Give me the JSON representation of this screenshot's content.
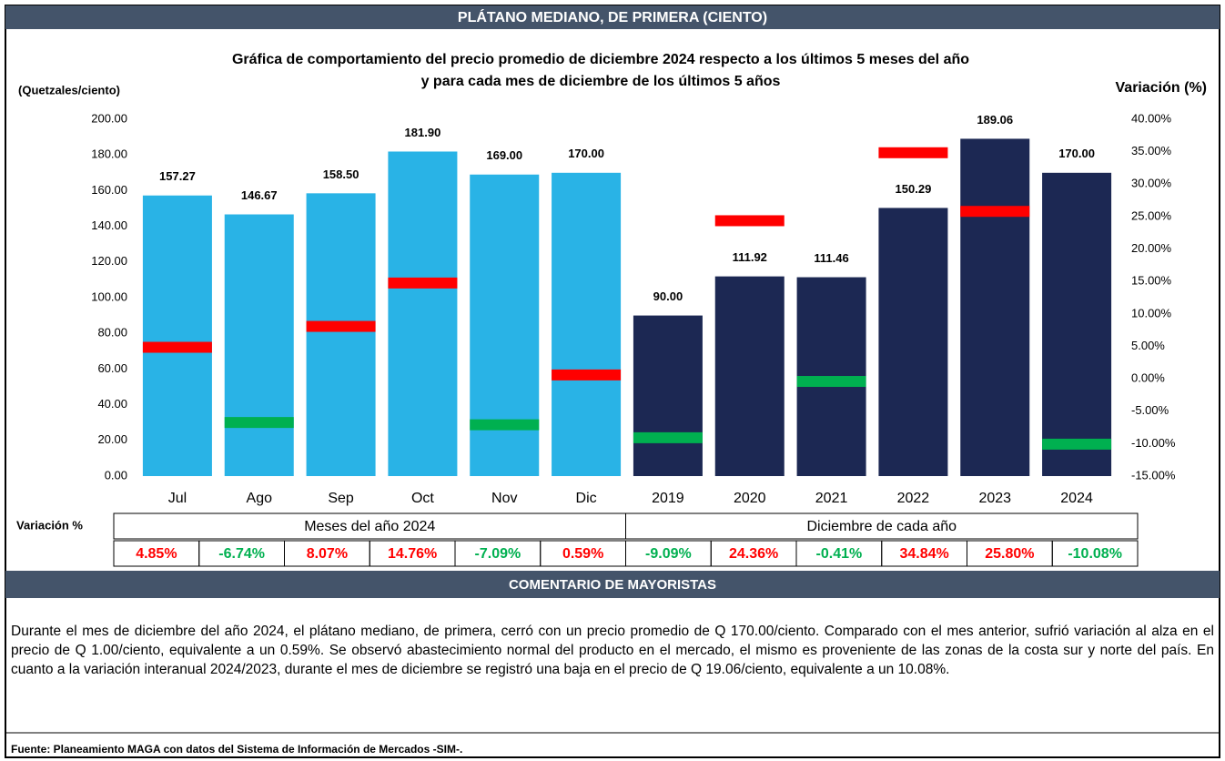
{
  "header": "PLÁTANO MEDIANO, DE PRIMERA (CIENTO)",
  "chart_data": {
    "type": "bar",
    "title_lines": [
      "Gráfica de comportamiento del precio promedio de diciembre 2024 respecto a los últimos 5 meses del año",
      "y para cada mes de diciembre de los últimos 5 años"
    ],
    "ylabel": "(Quetzales/ciento)",
    "y2label": "Variación (%)",
    "categories": [
      "Jul",
      "Ago",
      "Sep",
      "Oct",
      "Nov",
      "Dic",
      "2019",
      "2020",
      "2021",
      "2022",
      "2023",
      "2024"
    ],
    "series": [
      {
        "values": [
          157.27,
          146.67,
          158.5,
          181.9,
          169,
          170,
          90,
          111.92,
          111.46,
          150.29,
          189.06,
          170
        ],
        "value_labels": [
          "157.27",
          "146.67",
          "158.50",
          "181.90",
          "169.00",
          "170.00",
          "90.00",
          "111.92",
          "111.46",
          "150.29",
          "189.06",
          "170.00"
        ],
        "colors": [
          "#29b3e6",
          "#29b3e6",
          "#29b3e6",
          "#29b3e6",
          "#29b3e6",
          "#29b3e6",
          "#1c2853",
          "#1c2853",
          "#1c2853",
          "#1c2853",
          "#1c2853",
          "#1c2853"
        ]
      },
      {
        "axis": "y2",
        "values": [
          4.85,
          -6.74,
          8.07,
          14.76,
          -7.09,
          0.59,
          -9.09,
          24.36,
          -0.41,
          34.84,
          25.8,
          -10.08
        ],
        "value_labels": [
          "4.85%",
          "-6.74%",
          "8.07%",
          "14.76%",
          "-7.09%",
          "0.59%",
          "-9.09%",
          "24.36%",
          "-0.41%",
          "34.84%",
          "25.80%",
          "-10.08%"
        ],
        "positive_color": "#ff0000",
        "negative_color": "#00b050"
      }
    ],
    "ylim": [
      0,
      200
    ],
    "yticks": [
      {
        "value": 0,
        "label": "0.00"
      },
      {
        "value": 20,
        "label": "20.00"
      },
      {
        "value": 40,
        "label": "40.00"
      },
      {
        "value": 60,
        "label": "60.00"
      },
      {
        "value": 80,
        "label": "80.00"
      },
      {
        "value": 100,
        "label": "100.00"
      },
      {
        "value": 120,
        "label": "120.00"
      },
      {
        "value": 140,
        "label": "140.00"
      },
      {
        "value": 160,
        "label": "160.00"
      },
      {
        "value": 180,
        "label": "180.00"
      },
      {
        "value": 200,
        "label": "200.00"
      }
    ],
    "y2lim": [
      -15,
      40
    ],
    "y2ticks": [
      {
        "value": -15,
        "label": "-15.00%"
      },
      {
        "value": -10,
        "label": "-10.00%"
      },
      {
        "value": -5,
        "label": "-5.00%"
      },
      {
        "value": 0,
        "label": "0.00%"
      },
      {
        "value": 5,
        "label": "5.00%"
      },
      {
        "value": 10,
        "label": "10.00%"
      },
      {
        "value": 15,
        "label": "15.00%"
      },
      {
        "value": 20,
        "label": "20.00%"
      },
      {
        "value": 25,
        "label": "25.00%"
      },
      {
        "value": 30,
        "label": "30.00%"
      },
      {
        "value": 35,
        "label": "35.00%"
      },
      {
        "value": 40,
        "label": "40.00%"
      }
    ],
    "table_label": "Variación %",
    "groups": [
      "Meses del año  2024",
      "Diciembre de cada año"
    ]
  },
  "comment_header": "COMENTARIO DE MAYORISTAS",
  "comment": "Durante el mes de diciembre del año 2024, el plátano mediano, de primera, cerró con un precio promedio de Q 170.00/ciento. Comparado con el mes anterior, sufrió variación al alza en el precio de Q 1.00/ciento, equivalente a un 0.59%. Se observó abastecimiento normal del producto en el mercado, el mismo es proveniente de las zonas de la costa sur y norte del país. En cuanto a la variación interanual 2024/2023, durante el mes de diciembre se registró una baja en el precio de Q 19.06/ciento, equivalente a un 10.08%.",
  "source": "Fuente: Planeamiento MAGA con datos del  Sistema de Información de Mercados -SIM-."
}
